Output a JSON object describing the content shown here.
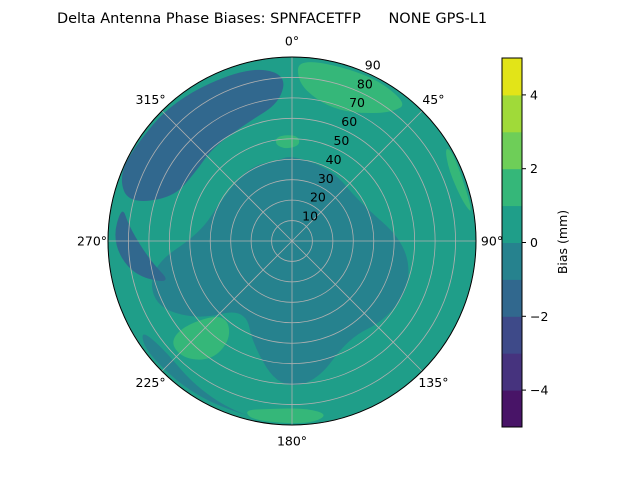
{
  "chart_data": {
    "type": "polar-contour",
    "title": "Delta Antenna Phase Biases: SPNFACETFP      NONE GPS-L1",
    "angular_ticks": [
      "0°",
      "45°",
      "90°",
      "135°",
      "180°",
      "225°",
      "270°",
      "315°"
    ],
    "angular_tick_values": [
      0,
      45,
      90,
      135,
      180,
      225,
      270,
      315
    ],
    "radial_ticks": [
      "10",
      "20",
      "30",
      "40",
      "50",
      "60",
      "70",
      "80",
      "90"
    ],
    "radial_tick_values": [
      10,
      20,
      30,
      40,
      50,
      60,
      70,
      80,
      90
    ],
    "radial_range": [
      0,
      90
    ],
    "angular_direction": "clockwise",
    "zero_location": "north",
    "grid": true,
    "colorbar": {
      "label": "Bias (mm)",
      "levels": [
        -5,
        -4,
        -3,
        -2,
        -1,
        0,
        1,
        2,
        3,
        4,
        5
      ],
      "colors": [
        "#481467",
        "#46337e",
        "#3e4a89",
        "#31688e",
        "#26828e",
        "#1f9e89",
        "#35b779",
        "#6ece58",
        "#a0da39",
        "#e2e418"
      ],
      "ticks": [
        "−4",
        "−2",
        "0",
        "2",
        "4"
      ],
      "tick_values": [
        -4,
        -2,
        0,
        2,
        4
      ],
      "range": [
        -5,
        5
      ],
      "colormap": "viridis"
    },
    "background_level": 0.5,
    "regions": [
      {
        "level": -0.5,
        "points": [
          [
            0,
            42
          ],
          [
            30,
            40
          ],
          [
            60,
            38
          ],
          [
            90,
            55
          ],
          [
            110,
            62
          ],
          [
            130,
            60
          ],
          [
            150,
            55
          ],
          [
            170,
            70
          ],
          [
            185,
            72
          ],
          [
            200,
            55
          ],
          [
            215,
            40
          ],
          [
            230,
            60
          ],
          [
            245,
            75
          ],
          [
            260,
            70
          ],
          [
            275,
            45
          ],
          [
            300,
            40
          ],
          [
            330,
            42
          ],
          [
            350,
            40
          ]
        ]
      },
      {
        "level": -1.5,
        "points": [
          [
            283,
            82
          ],
          [
            290,
            62
          ],
          [
            305,
            58
          ],
          [
            320,
            60
          ],
          [
            340,
            62
          ],
          [
            355,
            68
          ],
          [
            358,
            82
          ],
          [
            345,
            88
          ],
          [
            320,
            90
          ],
          [
            300,
            90
          ],
          [
            290,
            90
          ]
        ]
      },
      {
        "level": -1.5,
        "points": [
          [
            250,
            62
          ],
          [
            262,
            70
          ],
          [
            275,
            80
          ],
          [
            282,
            85
          ],
          [
            270,
            88
          ],
          [
            258,
            80
          ]
        ]
      },
      {
        "level": -0.5,
        "points": [
          [
            185,
            90
          ],
          [
            200,
            88
          ],
          [
            215,
            85
          ],
          [
            230,
            82
          ],
          [
            240,
            86
          ],
          [
            232,
            90
          ],
          [
            210,
            90
          ]
        ]
      },
      {
        "level": 1.5,
        "points": [
          [
            2,
            90
          ],
          [
            2,
            78
          ],
          [
            10,
            70
          ],
          [
            20,
            68
          ],
          [
            30,
            72
          ],
          [
            38,
            80
          ],
          [
            40,
            88
          ],
          [
            25,
            90
          ]
        ]
      },
      {
        "level": 1.5,
        "points": [
          [
            212,
            58
          ],
          [
            218,
            50
          ],
          [
            226,
            52
          ],
          [
            232,
            68
          ],
          [
            230,
            78
          ],
          [
            222,
            78
          ],
          [
            214,
            70
          ]
        ]
      },
      {
        "level": 1.5,
        "points": [
          [
            168,
            87
          ],
          [
            175,
            82
          ],
          [
            188,
            83
          ],
          [
            196,
            86
          ],
          [
            192,
            90
          ],
          [
            175,
            90
          ]
        ]
      },
      {
        "level": 1.5,
        "points": [
          [
            350,
            48
          ],
          [
            356,
            45
          ],
          [
            5,
            47
          ],
          [
            3,
            52
          ],
          [
            352,
            52
          ]
        ]
      },
      {
        "level": 1.5,
        "points": [
          [
            58,
            88
          ],
          [
            66,
            84
          ],
          [
            78,
            86
          ],
          [
            82,
            90
          ],
          [
            62,
            90
          ]
        ]
      }
    ]
  }
}
